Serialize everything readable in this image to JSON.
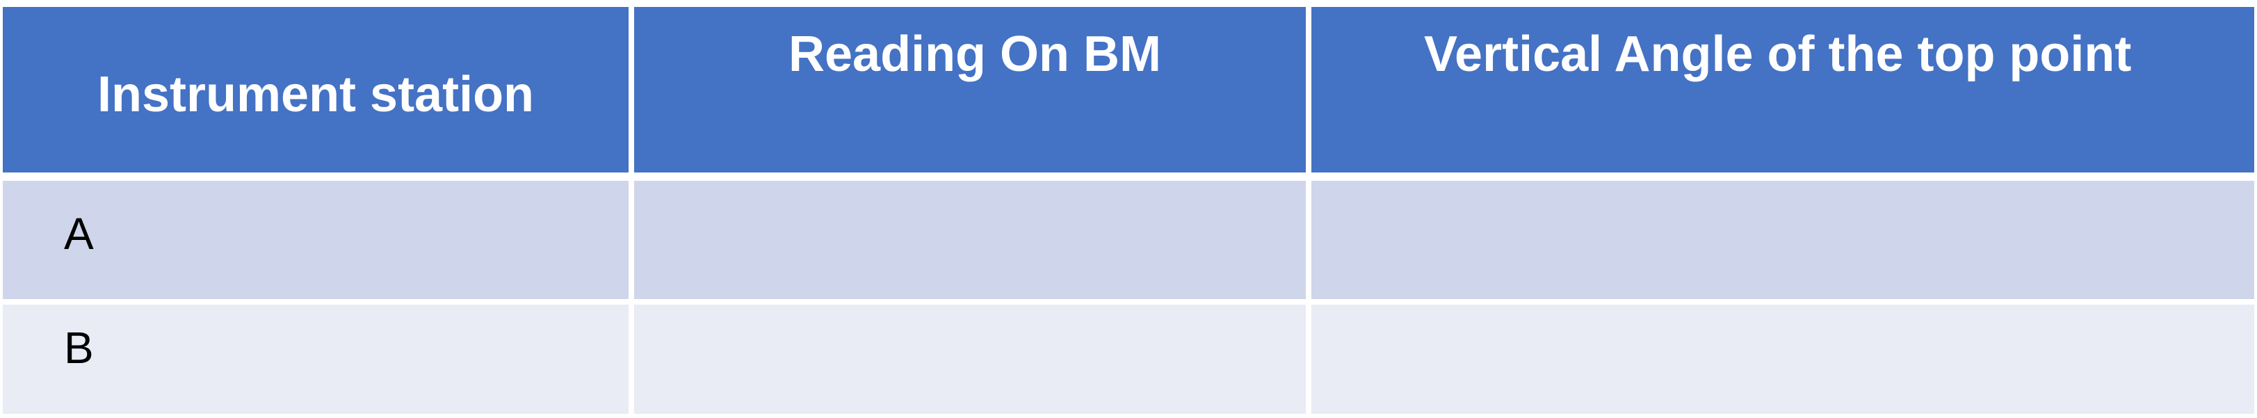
{
  "table": {
    "headers": [
      "Instrument station",
      "Reading On BM",
      "Vertical Angle of the top point"
    ],
    "rows": [
      {
        "station": "A",
        "reading_on_bm": "",
        "vertical_angle": ""
      },
      {
        "station": "B",
        "reading_on_bm": "",
        "vertical_angle": ""
      }
    ]
  },
  "colors": {
    "header_bg": "#4472c4",
    "header_text": "#ffffff",
    "row_odd_bg": "#cfd5ea",
    "row_even_bg": "#e9ebf5",
    "body_text": "#000000",
    "grid_lines": "#ffffff"
  }
}
